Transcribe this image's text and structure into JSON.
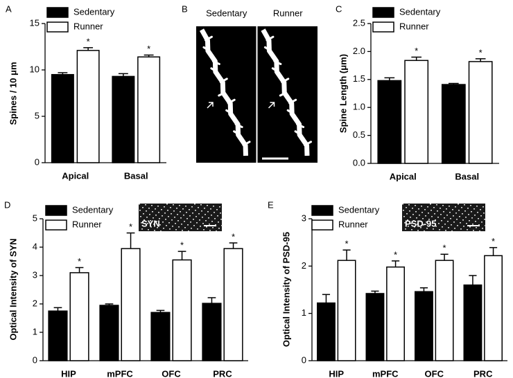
{
  "chart_data": [
    {
      "type": "bar",
      "panel": "A",
      "y_label": "Spines / 10 μm",
      "categories": [
        "Apical",
        "Basal"
      ],
      "series": [
        {
          "name": "Sedentary",
          "color": "#000000",
          "values": [
            9.5,
            9.3
          ],
          "errors": [
            0.2,
            0.3
          ]
        },
        {
          "name": "Runner",
          "color": "#ffffff",
          "values": [
            12.1,
            11.4
          ],
          "errors": [
            0.3,
            0.2
          ],
          "annotations": [
            "*",
            "*"
          ]
        }
      ],
      "ylim": [
        0,
        15
      ],
      "yticks": [
        0,
        5,
        10,
        15
      ]
    },
    {
      "type": "image",
      "panel": "B",
      "labels": [
        "Sedentary",
        "Runner"
      ]
    },
    {
      "type": "bar",
      "panel": "C",
      "y_label": "Spine Length (μm)",
      "categories": [
        "Apical",
        "Basal"
      ],
      "series": [
        {
          "name": "Sedentary",
          "color": "#000000",
          "values": [
            1.48,
            1.41
          ],
          "errors": [
            0.05,
            0.02
          ]
        },
        {
          "name": "Runner",
          "color": "#ffffff",
          "values": [
            1.84,
            1.82
          ],
          "errors": [
            0.06,
            0.05
          ],
          "annotations": [
            "*",
            "*"
          ]
        }
      ],
      "ylim": [
        0,
        2.5
      ],
      "yticks": [
        {
          "value": 0,
          "label": "0.0"
        },
        0.5,
        {
          "value": 1,
          "label": "1.0"
        },
        1.5,
        {
          "value": 2,
          "label": "2.0"
        },
        2.5
      ]
    },
    {
      "type": "bar",
      "panel": "D",
      "y_label": "Optical Intensity of SYN",
      "inset_label": "SYN",
      "categories": [
        "HIP",
        "mPFC",
        "OFC",
        "PRC"
      ],
      "series": [
        {
          "name": "Sedentary",
          "color": "#000000",
          "values": [
            1.75,
            1.95,
            1.7,
            2.02
          ],
          "errors": [
            0.12,
            0.05,
            0.07,
            0.2
          ]
        },
        {
          "name": "Runner",
          "color": "#ffffff",
          "values": [
            3.1,
            3.95,
            3.55,
            3.95
          ],
          "errors": [
            0.18,
            0.55,
            0.3,
            0.2
          ],
          "annotations": [
            "*",
            "*",
            "*",
            "*"
          ]
        }
      ],
      "ylim": [
        0,
        5
      ],
      "yticks": [
        0,
        1,
        2,
        3,
        4,
        5
      ]
    },
    {
      "type": "bar",
      "panel": "E",
      "y_label": "Optical Intensity of PSD-95",
      "inset_label": "PSD-95",
      "categories": [
        "HIP",
        "mPFC",
        "OFC",
        "PRC"
      ],
      "series": [
        {
          "name": "Sedentary",
          "color": "#000000",
          "values": [
            1.22,
            1.42,
            1.46,
            1.6
          ],
          "errors": [
            0.18,
            0.05,
            0.08,
            0.2
          ]
        },
        {
          "name": "Runner",
          "color": "#ffffff",
          "values": [
            2.12,
            1.98,
            2.12,
            2.22
          ],
          "errors": [
            0.22,
            0.13,
            0.13,
            0.17
          ],
          "annotations": [
            "*",
            "*",
            "*",
            "*"
          ]
        }
      ],
      "ylim": [
        0,
        3
      ],
      "yticks": [
        0,
        1,
        2,
        3
      ]
    }
  ]
}
